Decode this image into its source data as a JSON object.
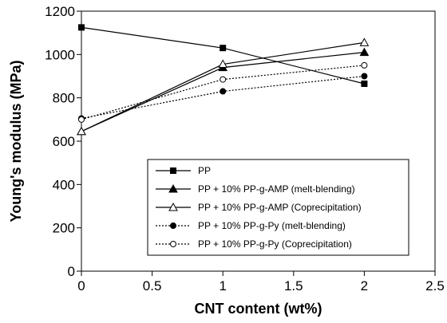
{
  "chart_data": {
    "type": "line",
    "title": "",
    "xlabel": "CNT content (wt%)",
    "ylabel": "Young's modulus (MPa)",
    "xlim": [
      0,
      2.5
    ],
    "ylim": [
      0,
      1200
    ],
    "xticks": [
      0,
      0.5,
      1,
      1.5,
      2,
      2.5
    ],
    "xtick_labels": [
      "0",
      "0.5",
      "1",
      "1.5",
      "2",
      "2.5"
    ],
    "yticks": [
      0,
      200,
      400,
      600,
      800,
      1000,
      1200
    ],
    "ytick_labels": [
      "0",
      "200",
      "400",
      "600",
      "800",
      "1000",
      "1200"
    ],
    "grid": false,
    "legend_position": "bottom-right",
    "x": [
      0,
      1,
      2
    ],
    "series": [
      {
        "name": "PP",
        "values": [
          1125,
          1030,
          865
        ],
        "marker": "filled-square",
        "line": "solid"
      },
      {
        "name": "PP + 10% PP-g-AMP (melt-blending)",
        "values": [
          645,
          940,
          1010
        ],
        "marker": "filled-triangle",
        "line": "solid"
      },
      {
        "name": "PP + 10% PP-g-AMP (Coprecipitation)",
        "values": [
          645,
          955,
          1055
        ],
        "marker": "open-triangle",
        "line": "solid"
      },
      {
        "name": "PP + 10% PP-g-Py (melt-blending)",
        "values": [
          705,
          830,
          900
        ],
        "marker": "filled-circle",
        "line": "dotted"
      },
      {
        "name": "PP + 10% PP-g-Py (Coprecipitation)",
        "values": [
          700,
          885,
          950
        ],
        "marker": "open-circle",
        "line": "dotted"
      }
    ]
  }
}
